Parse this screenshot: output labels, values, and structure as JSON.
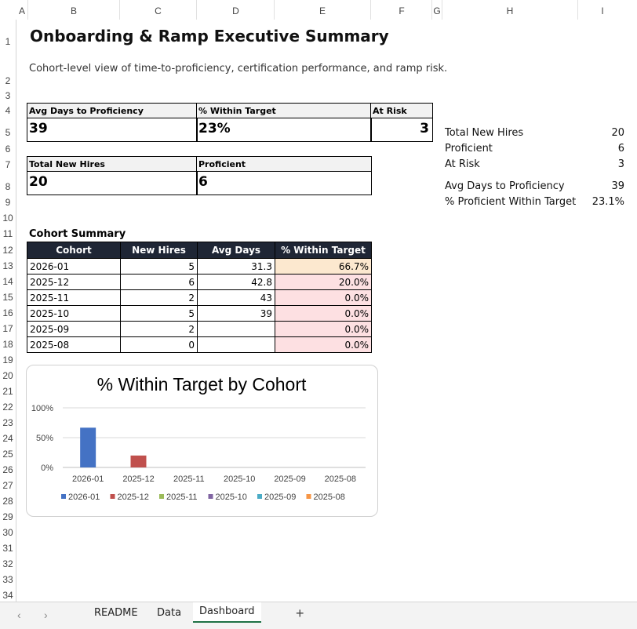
{
  "columns": [
    "A",
    "B",
    "C",
    "D",
    "E",
    "F",
    "G",
    "H",
    "I"
  ],
  "rows": [
    "1",
    "2",
    "3",
    "4",
    "5",
    "6",
    "7",
    "8",
    "9",
    "10",
    "11",
    "12",
    "13",
    "14",
    "15",
    "16",
    "17",
    "18",
    "19",
    "20",
    "21",
    "22",
    "23",
    "24",
    "25",
    "26",
    "27",
    "28",
    "29",
    "30",
    "31",
    "32",
    "33",
    "34"
  ],
  "header": {
    "title": "Onboarding & Ramp Executive Summary",
    "subtitle": "Cohort-level view of time-to-proficiency, certification performance, and ramp risk."
  },
  "kpis": {
    "avg_days_label": "Avg Days to Proficiency",
    "avg_days_value": "39",
    "within_target_label": "% Within Target",
    "within_target_value": "23%",
    "at_risk_label": "At Risk",
    "at_risk_value": "3",
    "total_new_hires_label": "Total New Hires",
    "total_new_hires_value": "20",
    "proficient_label": "Proficient",
    "proficient_value": "6"
  },
  "side_summary": [
    {
      "label": "Total New Hires",
      "value": "20"
    },
    {
      "label": "Proficient",
      "value": "6"
    },
    {
      "label": "At Risk",
      "value": "3"
    },
    {
      "label": "Avg Days to Proficiency",
      "value": "39"
    },
    {
      "label": "% Proficient Within Target",
      "value": "23.1%"
    }
  ],
  "cohort_table": {
    "title": "Cohort Summary",
    "headers": [
      "Cohort",
      "New Hires",
      "Avg Days",
      "% Within Target"
    ],
    "rows": [
      [
        "2026-01",
        "5",
        "31.3",
        "66.7%"
      ],
      [
        "2025-12",
        "6",
        "42.8",
        "20.0%"
      ],
      [
        "2025-11",
        "2",
        "43",
        "0.0%"
      ],
      [
        "2025-10",
        "5",
        "39",
        "0.0%"
      ],
      [
        "2025-09",
        "2",
        "",
        "0.0%"
      ],
      [
        "2025-08",
        "0",
        "",
        "0.0%"
      ]
    ]
  },
  "chart_data": {
    "type": "bar",
    "title": "% Within Target by Cohort",
    "categories": [
      "2026-01",
      "2025-12",
      "2025-11",
      "2025-10",
      "2025-09",
      "2025-08"
    ],
    "values": [
      66.7,
      20.0,
      0.0,
      0.0,
      0.0,
      0.0
    ],
    "ylim": [
      0,
      100
    ],
    "yticks": [
      "100%",
      "50%",
      "0%"
    ],
    "ytick_values": [
      100,
      50,
      0
    ],
    "colors": [
      "#4472c4",
      "#c0504d",
      "#9bbb59",
      "#8064a2",
      "#4bacc6",
      "#f79646"
    ],
    "legend": [
      "2026-01",
      "2025-12",
      "2025-11",
      "2025-10",
      "2025-09",
      "2025-08"
    ],
    "legend_position": "bottom",
    "grid": true
  },
  "tabs": {
    "prev": "‹",
    "next": "›",
    "items": [
      "README",
      "Data",
      "Dashboard"
    ],
    "active": "Dashboard",
    "add": "+"
  }
}
